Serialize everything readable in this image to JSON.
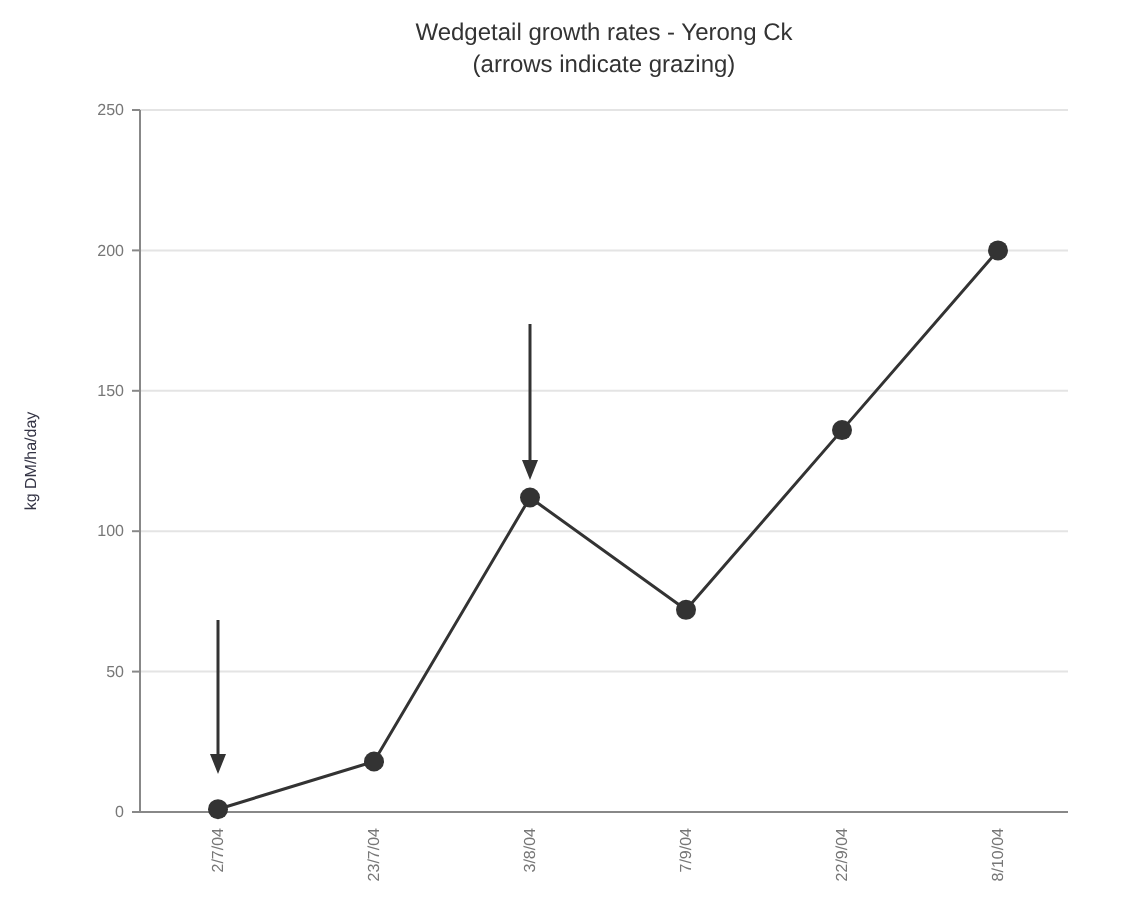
{
  "chart_data": {
    "type": "line",
    "title": "Wedgetail growth rates - Yerong Ck",
    "subtitle": "(arrows indicate grazing)",
    "ylabel": "kg DM/ha/day",
    "categories": [
      "2/7/04",
      "23/7/04",
      "3/8/04",
      "7/9/04",
      "22/9/04",
      "8/10/04"
    ],
    "series": [
      {
        "color": "#333333",
        "values": [
          1,
          18,
          112,
          72,
          136,
          200
        ]
      }
    ],
    "ylim": [
      0,
      250
    ],
    "yticks": [
      0,
      50,
      100,
      150,
      200,
      250
    ],
    "grid": "y",
    "marker": "circle",
    "line_style": "solid"
  }
}
